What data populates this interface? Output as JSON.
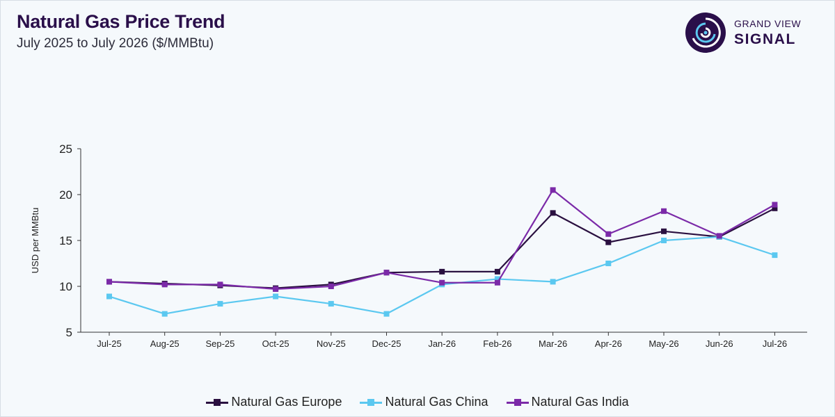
{
  "header": {
    "title": "Natural Gas Price Trend",
    "subtitle": "July 2025 to July 2026 ($/MMBtu)"
  },
  "logo": {
    "top_text": "GRAND VIEW",
    "bottom_text": "SIGNAL",
    "icon": "signal-swirl-icon",
    "color": "#2a0f4a"
  },
  "chart_data": {
    "type": "line",
    "title": "",
    "xlabel": "",
    "ylabel": "USD per MMBtu",
    "categories": [
      "Jul-25",
      "Aug-25",
      "Sep-25",
      "Oct-25",
      "Nov-25",
      "Dec-25",
      "Jan-26",
      "Feb-26",
      "Mar-26",
      "Apr-26",
      "May-26",
      "Jun-26",
      "Jul-26"
    ],
    "ylim": [
      5,
      25
    ],
    "yticks": [
      5,
      10,
      15,
      20,
      25
    ],
    "grid": false,
    "legend_position": "bottom-center",
    "series": [
      {
        "name": "Natural Gas Europe",
        "color": "#2a1040",
        "values": [
          10.5,
          10.3,
          10.1,
          9.8,
          10.2,
          11.5,
          11.6,
          11.6,
          18.0,
          14.8,
          16.0,
          15.4,
          18.5
        ]
      },
      {
        "name": "Natural Gas China",
        "color": "#5bc8f0",
        "values": [
          8.9,
          7.0,
          8.1,
          8.9,
          8.1,
          7.0,
          10.2,
          10.8,
          10.5,
          12.5,
          15.0,
          15.4,
          13.4
        ]
      },
      {
        "name": "Natural Gas India",
        "color": "#7b2aa8",
        "values": [
          10.5,
          10.2,
          10.2,
          9.7,
          10.0,
          11.5,
          10.4,
          10.4,
          20.5,
          15.7,
          18.2,
          15.5,
          18.9
        ]
      }
    ]
  }
}
